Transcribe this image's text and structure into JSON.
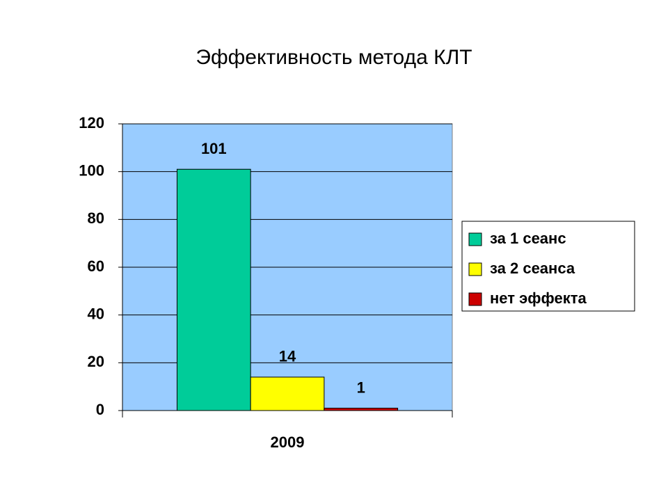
{
  "chart_data": {
    "type": "bar",
    "title": "Эффективность метода КЛТ",
    "categories": [
      "2009"
    ],
    "series": [
      {
        "name": "за 1 сеанс",
        "color": "#00cc99",
        "values": [
          101
        ]
      },
      {
        "name": "за 2 сеанса",
        "color": "#ffff00",
        "values": [
          14
        ]
      },
      {
        "name": "нет эффекта",
        "color": "#cc0000",
        "values": [
          1
        ]
      }
    ],
    "ylim": [
      0,
      120
    ],
    "yticks": [
      0,
      20,
      40,
      60,
      80,
      100,
      120
    ],
    "grid": true,
    "background": "#99ccff",
    "legend": "right"
  }
}
